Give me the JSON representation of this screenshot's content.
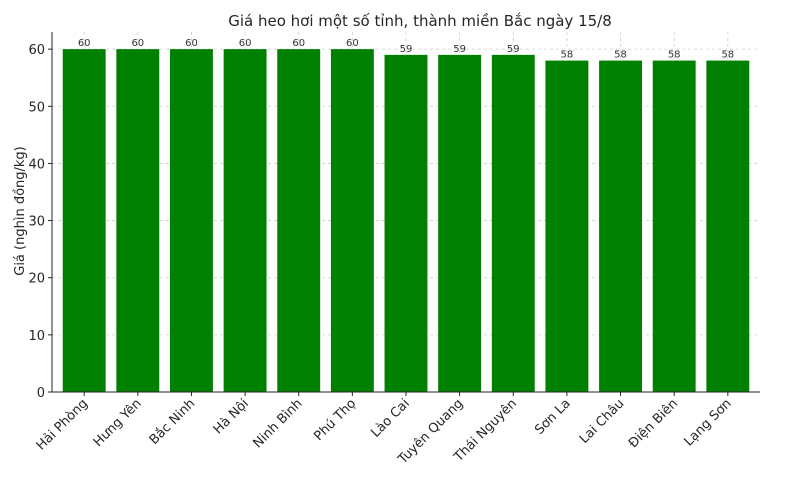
{
  "chart_data": {
    "type": "bar",
    "title": "Giá heo hơi một số tỉnh, thành miền Bắc ngày 15/8",
    "xlabel": "",
    "ylabel": "Giá (nghìn đồng/kg)",
    "categories": [
      "Hải Phòng",
      "Hưng Yên",
      "Bắc Ninh",
      "Hà Nội",
      "Ninh Bình",
      "Phú Thọ",
      "Lào Cai",
      "Tuyên Quang",
      "Thái Nguyên",
      "Sơn La",
      "Lai Châu",
      "Điện Biên",
      "Lạng Sơn"
    ],
    "values": [
      60,
      60,
      60,
      60,
      60,
      60,
      59,
      59,
      59,
      58,
      58,
      58,
      58
    ],
    "data_labels": [
      "60",
      "60",
      "60",
      "60",
      "60",
      "60",
      "59",
      "59",
      "59",
      "58",
      "58",
      "58",
      "58"
    ],
    "ylim": [
      0,
      63
    ],
    "yticks": [
      0,
      10,
      20,
      30,
      40,
      50,
      60
    ],
    "ytick_labels": [
      "0",
      "10",
      "20",
      "30",
      "40",
      "50",
      "60"
    ],
    "grid": true,
    "legend": "none",
    "colors": {
      "bar": "#008000",
      "grid": "#cccccc",
      "axis": "#262626"
    }
  }
}
